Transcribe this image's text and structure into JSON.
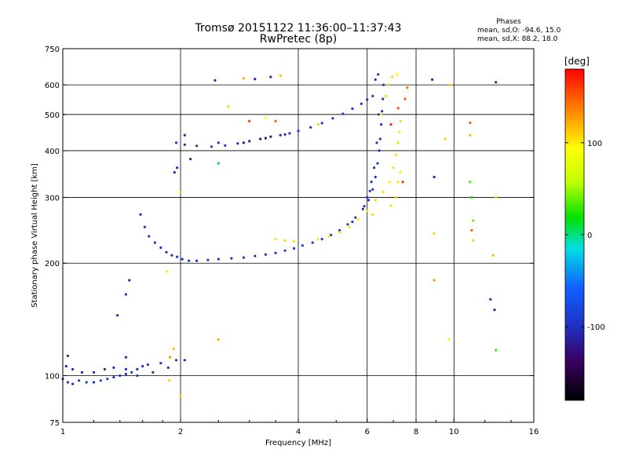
{
  "title": "Tromsø 20151122 11:36:00–11:37:43",
  "subtitle": "RwPretec (8p)",
  "phase_stats": {
    "heading": "Phases",
    "line_o": "mean, sd,O: -94.6, 15.0",
    "line_x": "mean, sd,X: 88.2, 18.0"
  },
  "colorbar": {
    "label": "[deg]",
    "ticks": [
      {
        "value": 100,
        "label": "100"
      },
      {
        "value": 0,
        "label": "0"
      },
      {
        "value": -100,
        "label": "-100"
      }
    ],
    "range": [
      -180,
      180
    ]
  },
  "chart_data": {
    "type": "scatter",
    "title": "Tromsø 20151122 11:36:00–11:37:43",
    "subtitle": "RwPretec (8p)",
    "xlabel": "Frequency [MHz]",
    "ylabel": "Stationary phase Virtual Height [km]",
    "xscale": "log",
    "yscale": "log",
    "xlim": [
      1,
      16
    ],
    "ylim": [
      75,
      750
    ],
    "xticks": [
      {
        "value": 1,
        "label": "1"
      },
      {
        "value": 2,
        "label": "2"
      },
      {
        "value": 4,
        "label": "4"
      },
      {
        "value": 6,
        "label": "6"
      },
      {
        "value": 8,
        "label": "8"
      },
      {
        "value": 10,
        "label": "10"
      },
      {
        "value": 16,
        "label": "16"
      }
    ],
    "yticks": [
      {
        "value": 75,
        "label": "75"
      },
      {
        "value": 100,
        "label": "100"
      },
      {
        "value": 200,
        "label": "200"
      },
      {
        "value": 300,
        "label": "300"
      },
      {
        "value": 400,
        "label": "400"
      },
      {
        "value": 500,
        "label": "500"
      },
      {
        "value": 600,
        "label": "600"
      },
      {
        "value": 750,
        "label": "750"
      }
    ],
    "grid_x": [
      2,
      4,
      6,
      8,
      10
    ],
    "grid_y": [
      100,
      200,
      300,
      400,
      500,
      600
    ],
    "grid": true,
    "series": [
      {
        "points": [
          [
            1.0,
            98,
            -95
          ],
          [
            1.03,
            96,
            -100
          ],
          [
            1.06,
            95,
            -95
          ],
          [
            1.1,
            97,
            -90
          ],
          [
            1.15,
            96,
            -95
          ],
          [
            1.2,
            96,
            -100
          ],
          [
            1.25,
            97,
            -95
          ],
          [
            1.3,
            98,
            -90
          ],
          [
            1.35,
            99,
            -95
          ],
          [
            1.4,
            100,
            -100
          ],
          [
            1.45,
            101,
            -95
          ],
          [
            1.5,
            102,
            -90
          ],
          [
            1.55,
            104,
            -95
          ],
          [
            1.6,
            106,
            -100
          ],
          [
            1.65,
            107,
            -95
          ],
          [
            1.02,
            106,
            -110
          ],
          [
            1.06,
            104,
            -105
          ],
          [
            1.12,
            102,
            -110
          ],
          [
            1.2,
            102,
            -105
          ],
          [
            1.28,
            104,
            -110
          ],
          [
            1.35,
            105,
            -100
          ],
          [
            1.45,
            104,
            -105
          ],
          [
            1.55,
            100,
            -95
          ],
          [
            1.7,
            102,
            -100
          ],
          [
            1.78,
            108,
            -95
          ],
          [
            1.03,
            113,
            -115
          ],
          [
            1.86,
            105,
            -100
          ],
          [
            1.95,
            110,
            -95
          ],
          [
            2.05,
            110,
            -100
          ]
        ]
      },
      {
        "points": [
          [
            1.58,
            270,
            -110
          ],
          [
            1.62,
            250,
            -105
          ],
          [
            1.66,
            236,
            -100
          ],
          [
            1.72,
            227,
            -100
          ],
          [
            1.78,
            220,
            -95
          ],
          [
            1.84,
            214,
            -100
          ],
          [
            1.9,
            210,
            -105
          ],
          [
            1.96,
            208,
            -95
          ],
          [
            2.02,
            205,
            -100
          ],
          [
            2.1,
            203,
            -95
          ],
          [
            2.2,
            203,
            -100
          ],
          [
            2.35,
            204,
            -95
          ],
          [
            2.5,
            205,
            -100
          ],
          [
            2.7,
            206,
            -105
          ],
          [
            2.9,
            207,
            -100
          ],
          [
            3.1,
            209,
            -95
          ],
          [
            3.3,
            211,
            -100
          ],
          [
            3.5,
            213,
            -95
          ],
          [
            3.7,
            216,
            -100
          ],
          [
            3.9,
            219,
            -95
          ],
          [
            4.1,
            223,
            -90
          ],
          [
            4.35,
            227,
            -95
          ],
          [
            4.6,
            232,
            -90
          ],
          [
            4.85,
            238,
            -95
          ],
          [
            5.1,
            245,
            -100
          ],
          [
            5.35,
            254,
            -95
          ],
          [
            5.6,
            265,
            -100
          ],
          [
            5.85,
            279,
            -95
          ],
          [
            6.05,
            295,
            -100
          ],
          [
            6.2,
            315,
            -95
          ],
          [
            6.3,
            340,
            -100
          ],
          [
            6.38,
            370,
            -95
          ],
          [
            6.44,
            400,
            -100
          ],
          [
            6.48,
            430,
            -95
          ],
          [
            6.52,
            470,
            -100
          ],
          [
            6.55,
            510,
            -95
          ],
          [
            6.58,
            550,
            -100
          ],
          [
            6.6,
            600,
            -95
          ],
          [
            6.3,
            620,
            -100
          ],
          [
            6.4,
            640,
            -105
          ],
          [
            6.0,
            300,
            -100
          ],
          [
            6.15,
            330,
            -95
          ],
          [
            6.25,
            360,
            -100
          ],
          [
            6.35,
            420,
            -95
          ],
          [
            6.42,
            500,
            -100
          ],
          [
            5.5,
            258,
            -90
          ],
          [
            5.9,
            284,
            -95
          ],
          [
            6.1,
            312,
            -100
          ]
        ]
      },
      {
        "points": [
          [
            1.95,
            420,
            -100
          ],
          [
            2.05,
            415,
            -105
          ],
          [
            2.2,
            412,
            -100
          ],
          [
            2.4,
            410,
            -95
          ],
          [
            2.6,
            413,
            -100
          ],
          [
            2.8,
            418,
            -110
          ],
          [
            3.0,
            424,
            -120
          ],
          [
            3.2,
            430,
            -125
          ],
          [
            3.4,
            436,
            -120
          ],
          [
            3.6,
            440,
            -110
          ],
          [
            3.8,
            445,
            -100
          ],
          [
            4.0,
            452,
            -95
          ],
          [
            4.3,
            462,
            -100
          ],
          [
            4.6,
            474,
            -95
          ],
          [
            4.9,
            488,
            -100
          ],
          [
            5.2,
            502,
            -95
          ],
          [
            5.5,
            518,
            -100
          ],
          [
            5.8,
            534,
            -95
          ],
          [
            6.0,
            548,
            -100
          ],
          [
            6.2,
            560,
            -95
          ],
          [
            2.5,
            420,
            -100
          ],
          [
            2.9,
            420,
            -120
          ],
          [
            3.3,
            432,
            -130
          ],
          [
            3.7,
            442,
            -115
          ],
          [
            4.5,
            470,
            110
          ]
        ]
      },
      {
        "points": [
          [
            3.5,
            232,
            105
          ],
          [
            3.7,
            230,
            110
          ],
          [
            3.9,
            229,
            105
          ],
          [
            4.5,
            232,
            100
          ],
          [
            4.8,
            236,
            105
          ],
          [
            5.1,
            242,
            110
          ],
          [
            5.4,
            250,
            105
          ],
          [
            5.7,
            262,
            100
          ],
          [
            6.0,
            276,
            105
          ],
          [
            6.3,
            295,
            110
          ],
          [
            6.6,
            310,
            105
          ],
          [
            6.85,
            330,
            100
          ],
          [
            7.0,
            360,
            105
          ],
          [
            7.1,
            390,
            110
          ],
          [
            7.2,
            420,
            105
          ],
          [
            7.25,
            450,
            100
          ],
          [
            7.3,
            480,
            105
          ],
          [
            7.1,
            300,
            110
          ],
          [
            6.9,
            285,
            105
          ],
          [
            7.2,
            330,
            100
          ],
          [
            6.8,
            600,
            110
          ],
          [
            6.95,
            630,
            105
          ],
          [
            7.15,
            640,
            95
          ],
          [
            6.7,
            560,
            110
          ],
          [
            6.5,
            500,
            105
          ],
          [
            7.3,
            350,
            100
          ],
          [
            6.2,
            270,
            110
          ]
        ]
      },
      {
        "points": [
          [
            7.4,
            330,
            160
          ],
          [
            7.5,
            550,
            150
          ],
          [
            6.9,
            470,
            170
          ],
          [
            7.2,
            520,
            155
          ],
          [
            7.6,
            590,
            140
          ]
        ]
      },
      {
        "points": [
          [
            2.45,
            617,
            -110
          ],
          [
            2.9,
            625,
            120
          ],
          [
            3.1,
            622,
            -105
          ],
          [
            3.4,
            630,
            -110
          ],
          [
            3.6,
            635,
            115
          ],
          [
            2.65,
            525,
            110
          ],
          [
            3.3,
            490,
            95
          ],
          [
            3.5,
            480,
            150
          ],
          [
            3.0,
            480,
            160
          ],
          [
            2.5,
            370,
            10
          ],
          [
            1.93,
            350,
            -105
          ],
          [
            1.96,
            360,
            -100
          ],
          [
            2.0,
            310,
            110
          ],
          [
            2.12,
            380,
            -110
          ],
          [
            2.05,
            440,
            -105
          ],
          [
            1.48,
            180,
            -110
          ],
          [
            1.45,
            165,
            -105
          ],
          [
            1.38,
            145,
            -110
          ],
          [
            1.45,
            112,
            -105
          ],
          [
            1.88,
            112,
            130
          ],
          [
            1.92,
            118,
            120
          ],
          [
            1.87,
            97,
            110
          ],
          [
            2.0,
            88,
            110
          ],
          [
            2.5,
            125,
            120
          ],
          [
            1.85,
            190,
            100
          ],
          [
            8.9,
            340,
            -110
          ],
          [
            8.9,
            240,
            110
          ],
          [
            8.9,
            180,
            130
          ],
          [
            8.8,
            620,
            -110
          ],
          [
            9.7,
            125,
            100
          ],
          [
            11.0,
            330,
            30
          ],
          [
            11.1,
            300,
            20
          ],
          [
            11.2,
            260,
            40
          ],
          [
            11.1,
            245,
            150
          ],
          [
            11.2,
            230,
            110
          ],
          [
            12.4,
            160,
            -100
          ],
          [
            12.7,
            150,
            -110
          ],
          [
            12.8,
            117,
            30
          ],
          [
            12.6,
            210,
            120
          ],
          [
            12.8,
            300,
            110
          ],
          [
            11.0,
            475,
            150
          ],
          [
            11.0,
            440,
            120
          ],
          [
            12.8,
            610,
            -110
          ],
          [
            9.5,
            430,
            110
          ],
          [
            9.8,
            600,
            110
          ]
        ]
      }
    ]
  }
}
